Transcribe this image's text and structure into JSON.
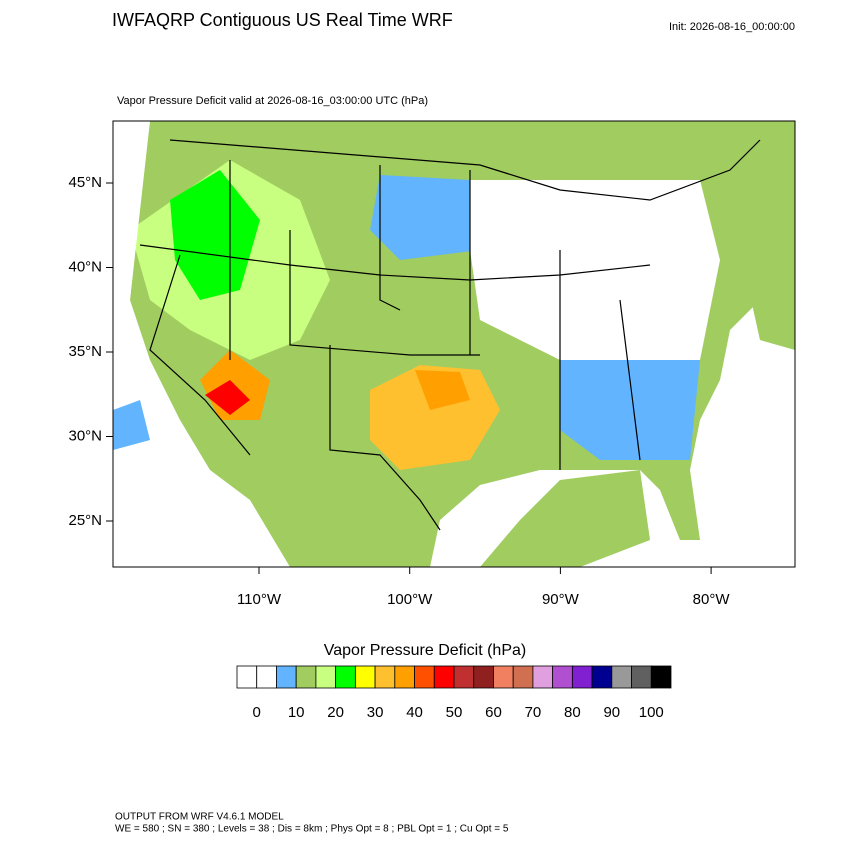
{
  "header": {
    "title": "IWFAQRP Contiguous US Real Time WRF",
    "init": "Init: 2026-08-16_00:00:00"
  },
  "map": {
    "subtitle": "Vapor Pressure Deficit valid at 2026-08-16_03:00:00 UTC   (hPa)",
    "lat_ticks": [
      {
        "value": 45,
        "label": "45°N"
      },
      {
        "value": 40,
        "label": "40°N"
      },
      {
        "value": 35,
        "label": "35°N"
      },
      {
        "value": 30,
        "label": "30°N"
      },
      {
        "value": 25,
        "label": "25°N"
      }
    ],
    "lon_ticks": [
      {
        "value": -110,
        "label": "110°W"
      },
      {
        "value": -100,
        "label": "100°W"
      },
      {
        "value": -90,
        "label": "90°W"
      },
      {
        "value": -80,
        "label": "80°W"
      }
    ]
  },
  "colorbar": {
    "title": "Vapor Pressure Deficit  (hPa)",
    "colors": [
      "#ffffff",
      "#ffffff",
      "#62b4ff",
      "#a0cc60",
      "#c8ff80",
      "#00ff00",
      "#ffff00",
      "#ffc030",
      "#ffa000",
      "#ff5000",
      "#ff0000",
      "#c03030",
      "#902020",
      "#f08060",
      "#d07050",
      "#e0a0e0",
      "#b050d0",
      "#8020d0",
      "#000090",
      "#999999",
      "#606060",
      "#000000"
    ],
    "ticks": [
      0,
      10,
      20,
      30,
      40,
      50,
      60,
      70,
      80,
      90,
      100
    ]
  },
  "footer": {
    "line1": "OUTPUT FROM WRF V4.6.1 MODEL",
    "line2": "WE = 580 ; SN = 380 ; Levels = 38 ; Dis = 8km ; Phys Opt = 8 ; PBL Opt = 1 ; Cu Opt = 5"
  }
}
